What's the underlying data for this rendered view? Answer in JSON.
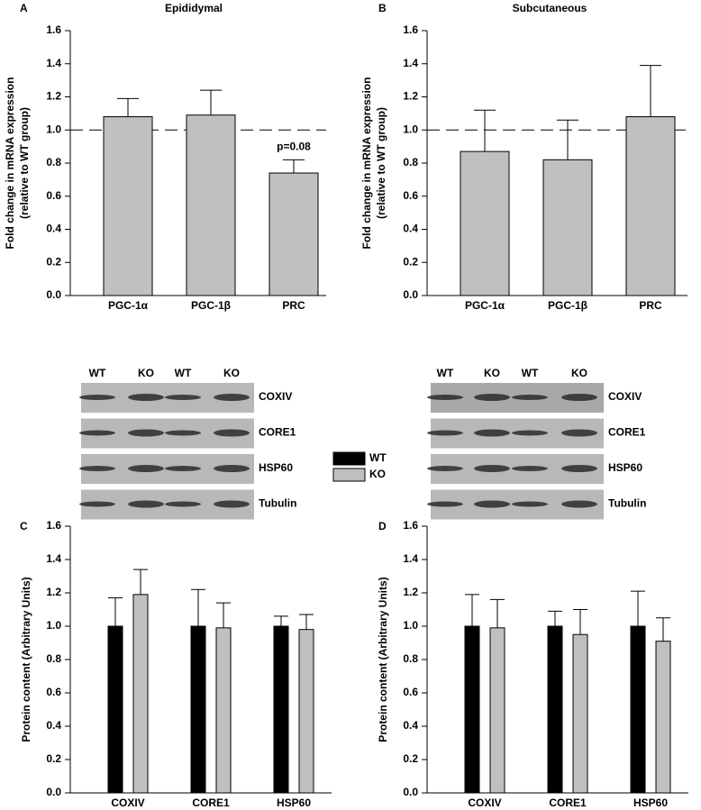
{
  "chart_data": [
    {
      "type": "bar",
      "panel": "A",
      "title": "Epididymal",
      "ylabel": [
        "Fold change in mRNA expression",
        "(relative to WT group)"
      ],
      "categories": [
        "PGC-1α",
        "PGC-1β",
        "PRC"
      ],
      "values": [
        1.08,
        1.09,
        0.74
      ],
      "errors": [
        0.11,
        0.15,
        0.08
      ],
      "color": "#c0c0c0",
      "reference_line": 1,
      "annotations": [
        {
          "text": "p=0.08",
          "x": "PRC"
        }
      ],
      "ylim": [
        0,
        1.6
      ],
      "yticks": [
        {
          "value": 0,
          "label": "0.0"
        },
        0.2,
        0.4,
        0.6,
        0.8,
        {
          "value": 1,
          "label": "1.0"
        },
        1.2,
        1.4,
        1.6
      ]
    },
    {
      "type": "bar",
      "panel": "B",
      "title": "Subcutaneous",
      "ylabel": [
        "Fold change in mRNA expression",
        "(relative to WT group)"
      ],
      "categories": [
        "PGC-1α",
        "PGC-1β",
        "PRC"
      ],
      "values": [
        0.87,
        0.82,
        1.08
      ],
      "errors": [
        0.25,
        0.24,
        0.31
      ],
      "color": "#c0c0c0",
      "reference_line": 1,
      "ylim": [
        0,
        1.6
      ],
      "yticks": [
        {
          "value": 0,
          "label": "0.0"
        },
        0.2,
        0.4,
        0.6,
        0.8,
        {
          "value": 1,
          "label": "1.0"
        },
        1.2,
        1.4,
        1.6
      ]
    },
    {
      "type": "grouped_bar",
      "panel": "C",
      "ylabel": [
        "Protein content (Arbitrary Units)"
      ],
      "categories": [
        "COXIV",
        "CORE1",
        "HSP60"
      ],
      "series": [
        {
          "name": "WT",
          "color": "#000000",
          "values": [
            1.0,
            1.0,
            1.0
          ],
          "errors": [
            0.17,
            0.22,
            0.06
          ]
        },
        {
          "name": "KO",
          "color": "#c0c0c0",
          "values": [
            1.19,
            0.99,
            0.98
          ],
          "errors": [
            0.15,
            0.15,
            0.09
          ]
        }
      ],
      "legend": true,
      "blot": {
        "lanes": [
          "WT",
          "KO",
          "WT",
          "KO"
        ],
        "rows": [
          "COXIV",
          "CORE1",
          "HSP60",
          "Tubulin"
        ]
      },
      "ylim": [
        0,
        1.6
      ],
      "yticks": [
        {
          "value": 0,
          "label": "0.0"
        },
        0.2,
        0.4,
        0.6,
        0.8,
        {
          "value": 1,
          "label": "1.0"
        },
        1.2,
        1.4,
        1.6
      ]
    },
    {
      "type": "grouped_bar",
      "panel": "D",
      "ylabel": [
        "Protein content (Arbitrary Units)"
      ],
      "categories": [
        "COXIV",
        "CORE1",
        "HSP60"
      ],
      "series": [
        {
          "color": "#000000",
          "values": [
            1.0,
            1.0,
            1.0
          ],
          "errors": [
            0.19,
            0.09,
            0.21
          ]
        },
        {
          "color": "#c0c0c0",
          "values": [
            0.99,
            0.95,
            0.91
          ],
          "errors": [
            0.17,
            0.15,
            0.14
          ]
        }
      ],
      "legend": false,
      "blot": {
        "lanes": [
          "WT",
          "KO",
          "WT",
          "KO"
        ],
        "rows": [
          "COXIV",
          "CORE1",
          "HSP60",
          "Tubulin"
        ]
      },
      "ylim": [
        0,
        1.6
      ],
      "yticks": [
        {
          "value": 0,
          "label": "0.0"
        },
        0.2,
        0.4,
        0.6,
        0.8,
        {
          "value": 1,
          "label": "1.0"
        },
        1.2,
        1.4,
        1.6
      ]
    }
  ]
}
